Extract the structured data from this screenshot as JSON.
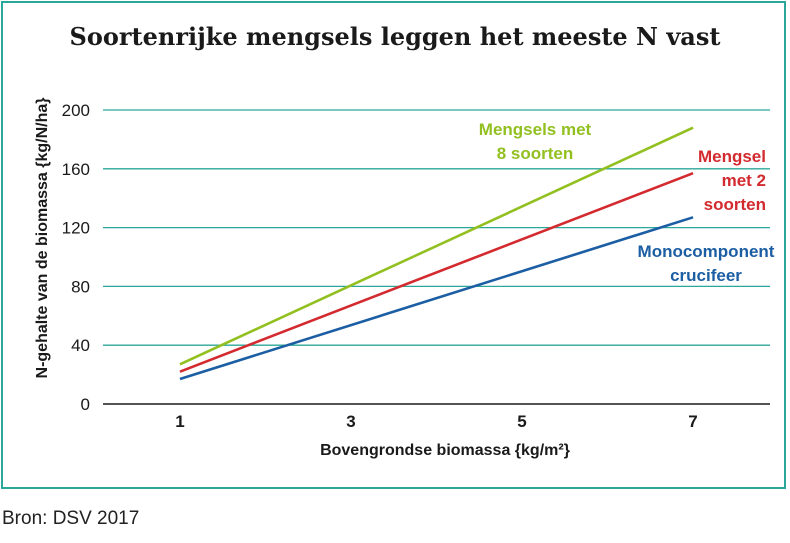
{
  "title": "Soortenrijke mengsels leggen het meeste N vast",
  "source": "Bron: DSV  2017",
  "chart_data": {
    "type": "line",
    "title": "Soortenrijke mengsels leggen het meeste N vast",
    "xlabel": "Bovengrondse biomassa  {kg/m²}",
    "ylabel": "N-gehalte van de biomassa  {kg/N/ha}",
    "x_ticks": [
      1,
      3,
      5,
      7
    ],
    "y_ticks": [
      0,
      40,
      80,
      120,
      160,
      200
    ],
    "xlim": [
      0.1,
      7.9
    ],
    "ylim": [
      0,
      200
    ],
    "grid": "horizontal",
    "series": [
      {
        "name": "Mengsels met 8 soorten",
        "label_lines": [
          "Mengsels met",
          "8 soorten"
        ],
        "color": "#92c020",
        "x": [
          1,
          7
        ],
        "y": [
          27,
          188
        ]
      },
      {
        "name": "Mengsel met 2 soorten",
        "label_lines": [
          "Mengsel",
          "met 2",
          "soorten"
        ],
        "color": "#d32a2f",
        "x": [
          1,
          7
        ],
        "y": [
          22,
          157
        ]
      },
      {
        "name": "Monocomponent crucifeer",
        "label_lines": [
          "Monocomponent",
          "crucifeer"
        ],
        "color": "#1c5ea3",
        "x": [
          1,
          7
        ],
        "y": [
          17,
          127
        ]
      }
    ]
  }
}
